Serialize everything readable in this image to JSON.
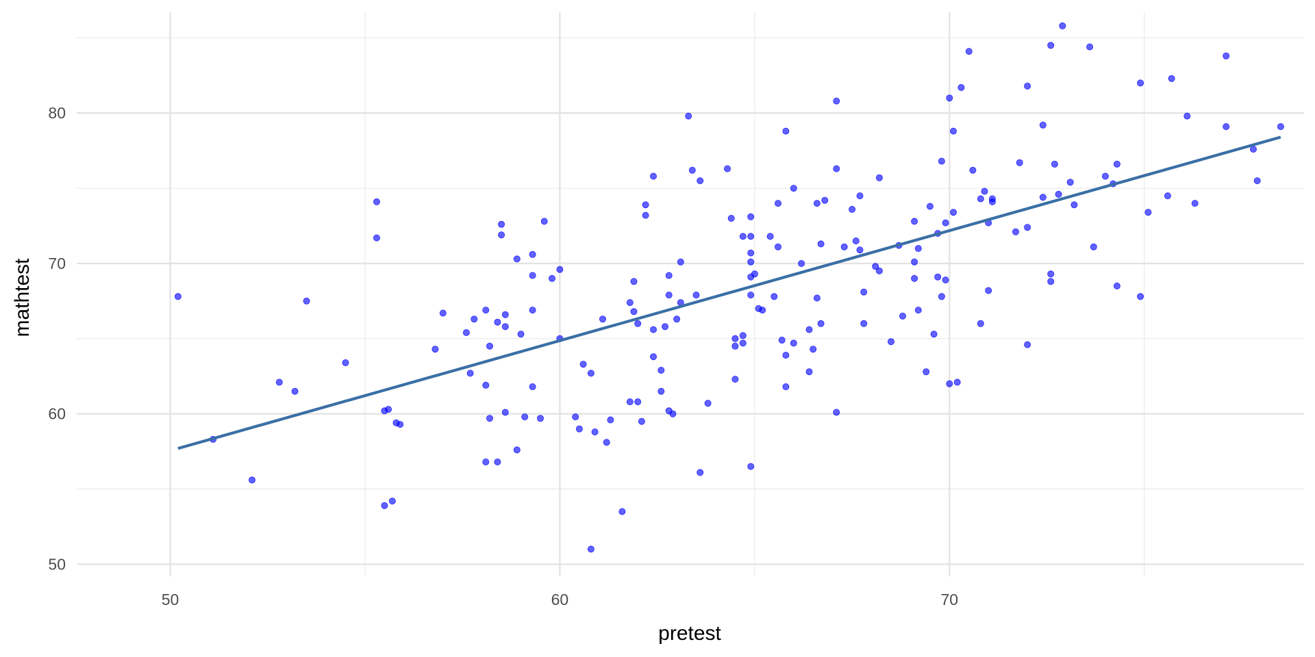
{
  "chart_data": {
    "type": "scatter",
    "title": "",
    "xlabel": "pretest",
    "ylabel": "mathtest",
    "xlim": [
      47.6,
      79.1
    ],
    "ylim": [
      49.2,
      86.7
    ],
    "grid": true,
    "x_ticks": [
      50,
      60,
      70
    ],
    "y_ticks": [
      50,
      60,
      70,
      80
    ],
    "point_color": "#0000FF",
    "line_color": "#3A6FA5",
    "regression_line": {
      "x": [
        50.2,
        78.5
      ],
      "y": [
        57.7,
        78.4
      ]
    },
    "points": [
      [
        50.2,
        67.8
      ],
      [
        51.1,
        58.3
      ],
      [
        52.1,
        55.6
      ],
      [
        52.8,
        62.1
      ],
      [
        53.2,
        61.5
      ],
      [
        53.5,
        67.5
      ],
      [
        54.5,
        63.4
      ],
      [
        55.3,
        74.1
      ],
      [
        55.3,
        71.7
      ],
      [
        55.5,
        60.2
      ],
      [
        55.6,
        60.3
      ],
      [
        55.8,
        59.4
      ],
      [
        55.9,
        59.3
      ],
      [
        55.5,
        53.9
      ],
      [
        55.7,
        54.2
      ],
      [
        56.8,
        64.3
      ],
      [
        57.0,
        66.7
      ],
      [
        57.6,
        65.4
      ],
      [
        57.7,
        62.7
      ],
      [
        57.8,
        66.3
      ],
      [
        58.1,
        66.9
      ],
      [
        58.1,
        61.9
      ],
      [
        58.2,
        59.7
      ],
      [
        58.2,
        64.5
      ],
      [
        58.1,
        56.8
      ],
      [
        58.4,
        56.8
      ],
      [
        58.4,
        66.1
      ],
      [
        58.5,
        72.6
      ],
      [
        58.5,
        71.9
      ],
      [
        58.6,
        65.8
      ],
      [
        58.6,
        66.6
      ],
      [
        58.6,
        60.1
      ],
      [
        58.9,
        57.6
      ],
      [
        58.9,
        70.3
      ],
      [
        59.0,
        65.3
      ],
      [
        59.1,
        59.8
      ],
      [
        59.3,
        70.6
      ],
      [
        59.3,
        69.2
      ],
      [
        59.3,
        66.9
      ],
      [
        59.3,
        61.8
      ],
      [
        59.6,
        72.8
      ],
      [
        59.5,
        59.7
      ],
      [
        59.8,
        69.0
      ],
      [
        60.0,
        69.6
      ],
      [
        60.0,
        65.0
      ],
      [
        60.4,
        59.8
      ],
      [
        60.5,
        59.0
      ],
      [
        60.6,
        63.3
      ],
      [
        60.8,
        62.7
      ],
      [
        60.9,
        58.8
      ],
      [
        60.8,
        51.0
      ],
      [
        61.1,
        66.3
      ],
      [
        61.3,
        59.6
      ],
      [
        61.2,
        58.1
      ],
      [
        61.6,
        53.5
      ],
      [
        61.8,
        67.4
      ],
      [
        61.9,
        68.8
      ],
      [
        61.9,
        66.8
      ],
      [
        62.0,
        66.0
      ],
      [
        62.0,
        60.8
      ],
      [
        61.8,
        60.8
      ],
      [
        62.1,
        59.5
      ],
      [
        62.2,
        73.9
      ],
      [
        62.2,
        73.2
      ],
      [
        62.4,
        75.8
      ],
      [
        62.4,
        65.6
      ],
      [
        62.4,
        63.8
      ],
      [
        62.6,
        62.9
      ],
      [
        62.6,
        61.5
      ],
      [
        62.7,
        65.8
      ],
      [
        62.8,
        69.2
      ],
      [
        62.8,
        67.9
      ],
      [
        62.8,
        60.2
      ],
      [
        62.9,
        60.0
      ],
      [
        63.0,
        66.3
      ],
      [
        63.1,
        70.1
      ],
      [
        63.1,
        67.4
      ],
      [
        63.3,
        79.8
      ],
      [
        63.4,
        76.2
      ],
      [
        63.5,
        67.9
      ],
      [
        63.6,
        75.5
      ],
      [
        63.6,
        56.1
      ],
      [
        63.8,
        60.7
      ],
      [
        64.3,
        76.3
      ],
      [
        64.4,
        73.0
      ],
      [
        64.5,
        65.0
      ],
      [
        64.5,
        64.5
      ],
      [
        64.5,
        62.3
      ],
      [
        64.7,
        71.8
      ],
      [
        64.7,
        65.2
      ],
      [
        64.7,
        64.7
      ],
      [
        64.9,
        73.1
      ],
      [
        64.9,
        71.8
      ],
      [
        64.9,
        67.9
      ],
      [
        64.9,
        70.1
      ],
      [
        64.9,
        70.7
      ],
      [
        64.9,
        69.1
      ],
      [
        65.0,
        69.3
      ],
      [
        64.9,
        56.5
      ],
      [
        65.1,
        67.0
      ],
      [
        65.2,
        66.9
      ],
      [
        65.4,
        71.8
      ],
      [
        65.5,
        67.8
      ],
      [
        65.6,
        74.0
      ],
      [
        65.6,
        71.1
      ],
      [
        65.7,
        64.9
      ],
      [
        65.8,
        63.9
      ],
      [
        65.8,
        78.8
      ],
      [
        65.8,
        61.8
      ],
      [
        66.0,
        75.0
      ],
      [
        66.0,
        64.7
      ],
      [
        66.2,
        70.0
      ],
      [
        66.4,
        65.6
      ],
      [
        66.4,
        62.8
      ],
      [
        66.5,
        64.3
      ],
      [
        66.6,
        74.0
      ],
      [
        66.6,
        67.7
      ],
      [
        66.7,
        71.3
      ],
      [
        66.7,
        66.0
      ],
      [
        66.8,
        74.2
      ],
      [
        67.1,
        60.1
      ],
      [
        67.1,
        80.8
      ],
      [
        67.1,
        76.3
      ],
      [
        67.3,
        71.1
      ],
      [
        67.5,
        73.6
      ],
      [
        67.6,
        71.5
      ],
      [
        67.7,
        74.5
      ],
      [
        67.7,
        70.9
      ],
      [
        67.8,
        68.1
      ],
      [
        67.8,
        66.0
      ],
      [
        68.1,
        69.8
      ],
      [
        68.2,
        69.5
      ],
      [
        68.2,
        75.7
      ],
      [
        68.5,
        64.8
      ],
      [
        68.7,
        71.2
      ],
      [
        68.8,
        66.5
      ],
      [
        69.1,
        72.8
      ],
      [
        69.1,
        70.1
      ],
      [
        69.1,
        69.0
      ],
      [
        69.2,
        71.0
      ],
      [
        69.2,
        66.9
      ],
      [
        69.4,
        62.8
      ],
      [
        69.5,
        73.8
      ],
      [
        69.6,
        65.3
      ],
      [
        69.7,
        72.0
      ],
      [
        69.7,
        69.1
      ],
      [
        69.8,
        76.8
      ],
      [
        69.8,
        67.8
      ],
      [
        69.9,
        68.9
      ],
      [
        69.9,
        72.7
      ],
      [
        70.0,
        81.0
      ],
      [
        70.0,
        62.0
      ],
      [
        70.1,
        78.8
      ],
      [
        70.1,
        73.4
      ],
      [
        70.2,
        62.1
      ],
      [
        70.3,
        81.7
      ],
      [
        70.5,
        84.1
      ],
      [
        70.6,
        76.2
      ],
      [
        70.8,
        74.3
      ],
      [
        70.8,
        66.0
      ],
      [
        70.9,
        74.8
      ],
      [
        71.0,
        68.2
      ],
      [
        71.0,
        72.7
      ],
      [
        71.1,
        74.1
      ],
      [
        71.1,
        74.3
      ],
      [
        71.7,
        72.1
      ],
      [
        71.8,
        76.7
      ],
      [
        72.0,
        81.8
      ],
      [
        72.0,
        72.4
      ],
      [
        72.0,
        64.6
      ],
      [
        72.4,
        79.2
      ],
      [
        72.4,
        74.4
      ],
      [
        72.6,
        69.3
      ],
      [
        72.6,
        68.8
      ],
      [
        72.6,
        84.5
      ],
      [
        72.7,
        76.6
      ],
      [
        72.8,
        74.6
      ],
      [
        72.9,
        85.8
      ],
      [
        73.1,
        75.4
      ],
      [
        73.2,
        73.9
      ],
      [
        73.6,
        84.4
      ],
      [
        73.7,
        71.1
      ],
      [
        74.0,
        75.8
      ],
      [
        74.2,
        75.3
      ],
      [
        74.3,
        76.6
      ],
      [
        74.3,
        68.5
      ],
      [
        74.9,
        82.0
      ],
      [
        74.9,
        67.8
      ],
      [
        75.1,
        73.4
      ],
      [
        75.6,
        74.5
      ],
      [
        75.7,
        82.3
      ],
      [
        76.1,
        79.8
      ],
      [
        76.3,
        74.0
      ],
      [
        77.1,
        83.8
      ],
      [
        77.1,
        79.1
      ],
      [
        77.8,
        77.6
      ],
      [
        77.9,
        75.5
      ],
      [
        78.5,
        79.1
      ]
    ]
  }
}
